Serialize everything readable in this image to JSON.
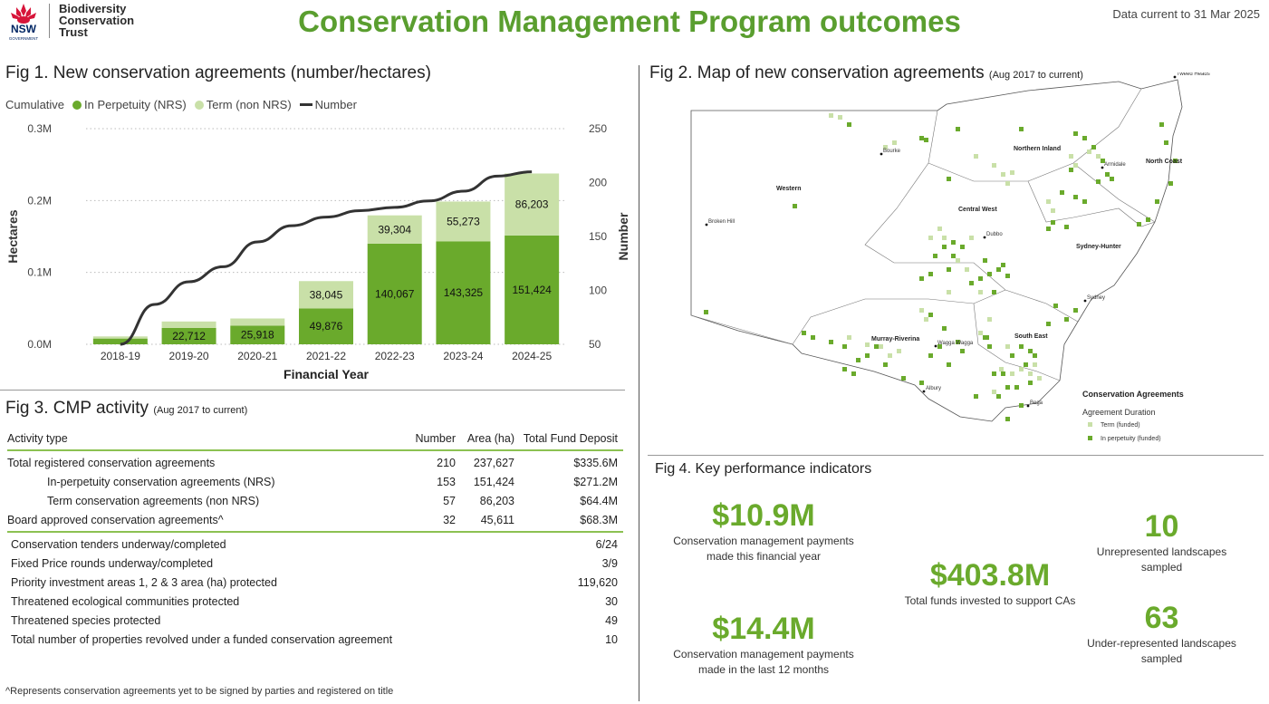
{
  "header": {
    "logo_nsw": "NSW",
    "logo_gov": "GOVERNMENT",
    "logo_org_line1": "Biodiversity",
    "logo_org_line2": "Conservation",
    "logo_org_line3": "Trust",
    "title": "Conservation Management Program outcomes",
    "data_current": "Data current to 31 Mar 2025"
  },
  "fig1": {
    "title": "Fig 1. New conservation agreements (number/hectares)",
    "legend": {
      "prefix": "Cumulative",
      "a": "In Perpetuity (NRS)",
      "b": "Term (non NRS)",
      "c": "Number"
    }
  },
  "fig2": {
    "title": "Fig 2. Map of new conservation agreements",
    "subtitle": "(Aug 2017 to current)",
    "legend_title": "Conservation Agreements",
    "legend_sub": "Agreement Duration",
    "legend_term": "Term (funded)",
    "legend_perp": "In perpetuity (funded)",
    "regions": [
      "Western",
      "Central West",
      "Northern Inland",
      "North Coast",
      "Sydney-Hunter",
      "Murray-Riverina",
      "South East"
    ],
    "towns": [
      "Bourke",
      "Broken Hill",
      "Dubbo",
      "Armidale",
      "Tweed Heads",
      "Sydney",
      "Wagga Wagga",
      "Albury",
      "Bega"
    ]
  },
  "fig3": {
    "title": "Fig 3. CMP activity",
    "subtitle": "(Aug 2017 to current)",
    "headers": [
      "Activity type",
      "Number",
      "Area (ha)",
      "Total Fund Deposit"
    ],
    "rows": [
      [
        "Total registered conservation agreements",
        "210",
        "237,627",
        "$335.6M"
      ],
      [
        "In-perpetuity conservation agreements (NRS)",
        "153",
        "151,424",
        "$271.2M"
      ],
      [
        "Term conservation agreements (non NRS)",
        "57",
        "86,203",
        "$64.4M"
      ],
      [
        "Board approved conservation agreements^",
        "32",
        "45,611",
        "$68.3M"
      ]
    ],
    "rows2": [
      [
        "Conservation tenders underway/completed",
        "6/24"
      ],
      [
        "Fixed Price rounds underway/completed",
        "3/9"
      ],
      [
        "Priority investment areas 1, 2 & 3 area (ha) protected",
        "119,620"
      ],
      [
        "Threatened ecological communities protected",
        "30"
      ],
      [
        "Threatened species protected",
        "49"
      ],
      [
        "Total number of properties revolved under a funded conservation agreement",
        "10"
      ]
    ],
    "note": "^Represents conservation agreements yet to be signed by parties and registered on title"
  },
  "fig4": {
    "title": "Fig 4. Key performance indicators",
    "kpis": [
      {
        "value": "$10.9M",
        "label1": "Conservation management payments",
        "label2": "made this financial year"
      },
      {
        "value": "$14.4M",
        "label1": "Conservation management payments",
        "label2": "made in the last 12 months"
      },
      {
        "value": "$403.8M",
        "label1": "Total funds invested to support CAs",
        "label2": ""
      },
      {
        "value": "10",
        "label1": "Unrepresented landscapes",
        "label2": "sampled"
      },
      {
        "value": "63",
        "label1": "Under-represented landscapes",
        "label2": "sampled"
      }
    ]
  },
  "colors": {
    "perpetuity": "#6aaa2c",
    "term": "#c9e0a8",
    "line": "#333333",
    "title": "#5a9e2f"
  },
  "chart_data": {
    "type": "bar",
    "title": "",
    "xlabel": "Financial Year",
    "ylabel": "Hectares",
    "y2label": "Number",
    "categories": [
      "2018-19",
      "2019-20",
      "2020-21",
      "2021-22",
      "2022-23",
      "2023-24",
      "2024-25"
    ],
    "series": [
      {
        "name": "In Perpetuity (NRS)",
        "values": [
          8000,
          22712,
          25918,
          49876,
          140067,
          143325,
          151424
        ],
        "labels": [
          "",
          "22,712",
          "25,918",
          "49,876",
          "140,067",
          "143,325",
          "151,424"
        ]
      },
      {
        "name": "Term (non NRS)",
        "values": [
          3000,
          9000,
          10000,
          38045,
          39304,
          55273,
          86203
        ],
        "labels": [
          "",
          "",
          "",
          "38,045",
          "39,304",
          "55,273",
          "86,203"
        ]
      },
      {
        "name": "Number",
        "axis": "y2",
        "x": [
          0,
          0.5,
          1,
          1.5,
          2,
          2.5,
          3,
          3.5,
          4,
          4.5,
          5,
          5.5,
          6
        ],
        "values": [
          50,
          87,
          108,
          122,
          145,
          160,
          168,
          174,
          177,
          183,
          192,
          206,
          210
        ]
      }
    ],
    "ylim": [
      0,
      300000
    ],
    "yticks": [
      "0.0M",
      "0.1M",
      "0.2M",
      "0.3M"
    ],
    "y2lim": [
      50,
      250
    ],
    "y2ticks": [
      "50",
      "100",
      "150",
      "200",
      "250"
    ],
    "legend": "top-left"
  }
}
